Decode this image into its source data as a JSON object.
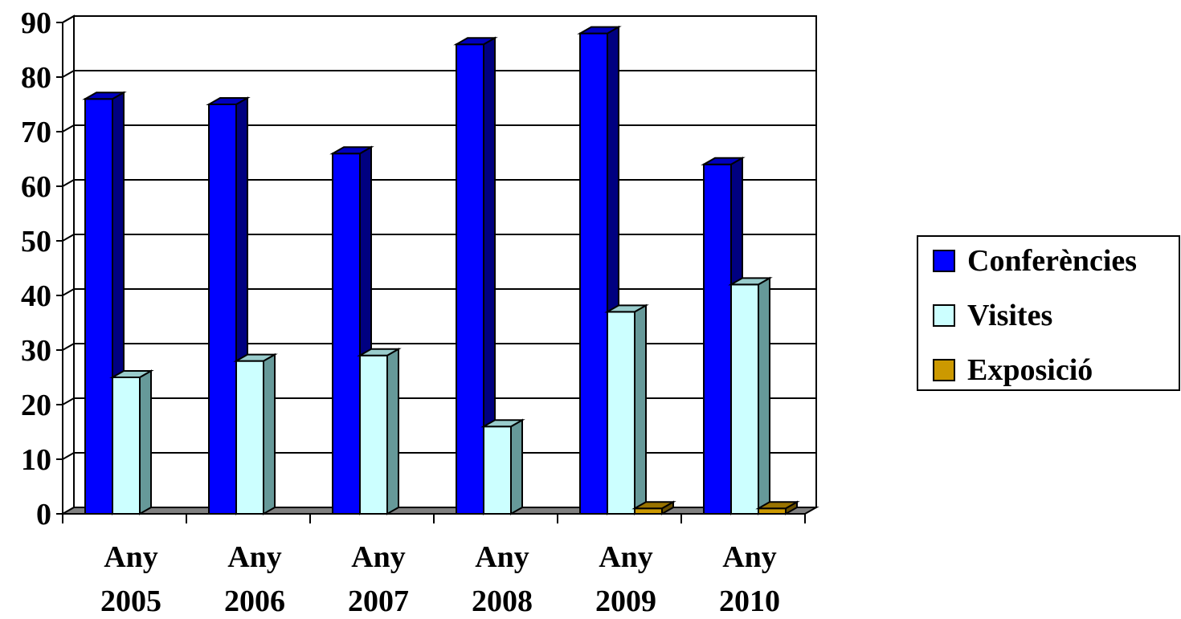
{
  "chart_data": {
    "type": "bar",
    "style": "3d-clustered-column",
    "categories": [
      [
        "Any",
        "2005"
      ],
      [
        "Any",
        "2006"
      ],
      [
        "Any",
        "2007"
      ],
      [
        "Any",
        "2008"
      ],
      [
        "Any",
        "2009"
      ],
      [
        "Any",
        "2010"
      ]
    ],
    "series": [
      {
        "name": "Conferències",
        "values": [
          76,
          75,
          66,
          86,
          88,
          64
        ],
        "color": "#0000FF"
      },
      {
        "name": "Visites",
        "values": [
          25,
          28,
          29,
          16,
          37,
          42
        ],
        "color": "#CCFFFF"
      },
      {
        "name": "Exposició",
        "values": [
          0,
          0,
          0,
          0,
          1,
          1
        ],
        "color": "#CC9900"
      }
    ],
    "ylim": [
      0,
      90
    ],
    "yticks": [
      0,
      10,
      20,
      30,
      40,
      50,
      60,
      70,
      80,
      90
    ],
    "grid": true,
    "legend": "right"
  }
}
